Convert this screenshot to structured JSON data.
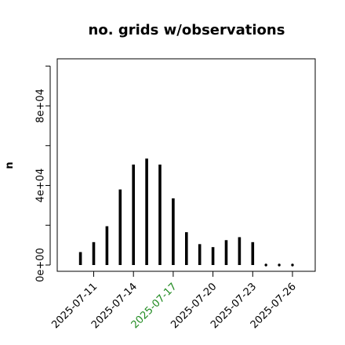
{
  "chart_data": {
    "type": "bar",
    "title": "no. grids w/observations",
    "ylabel": "n",
    "xlabel": "",
    "x": [
      "2025-07-11",
      "2025-07-12",
      "2025-07-13",
      "2025-07-14",
      "2025-07-15",
      "2025-07-16",
      "2025-07-17",
      "2025-07-18",
      "2025-07-19",
      "2025-07-20",
      "2025-07-21",
      "2025-07-22",
      "2025-07-23",
      "2025-07-24",
      "2025-07-25",
      "2025-07-26"
    ],
    "values": [
      11500,
      19500,
      38000,
      50500,
      53500,
      50500,
      33500,
      16500,
      10500,
      9000,
      12500,
      14000,
      11500,
      0,
      0,
      0
    ],
    "first_bar_x": 10.0,
    "first_bar_value": 6500,
    "ylim": [
      0,
      100000
    ],
    "yticks": [
      {
        "value": 0,
        "label": "0e+00"
      },
      {
        "value": 40000,
        "label": "4e+04"
      },
      {
        "value": 80000,
        "label": "8e+04"
      }
    ],
    "ytick_minor": [
      20000,
      60000,
      100000
    ],
    "xticks": [
      {
        "date": "2025-07-11",
        "label": "2025-07-11",
        "color": "#000000"
      },
      {
        "date": "2025-07-14",
        "label": "2025-07-14",
        "color": "#000000"
      },
      {
        "date": "2025-07-17",
        "label": "2025-07-17",
        "color": "#228b22"
      },
      {
        "date": "2025-07-20",
        "label": "2025-07-20",
        "color": "#000000"
      },
      {
        "date": "2025-07-23",
        "label": "2025-07-23",
        "color": "#000000"
      },
      {
        "date": "2025-07-26",
        "label": "2025-07-26",
        "color": "#000000"
      }
    ],
    "bar_color": "#000000",
    "grid": false,
    "legend": "none"
  }
}
